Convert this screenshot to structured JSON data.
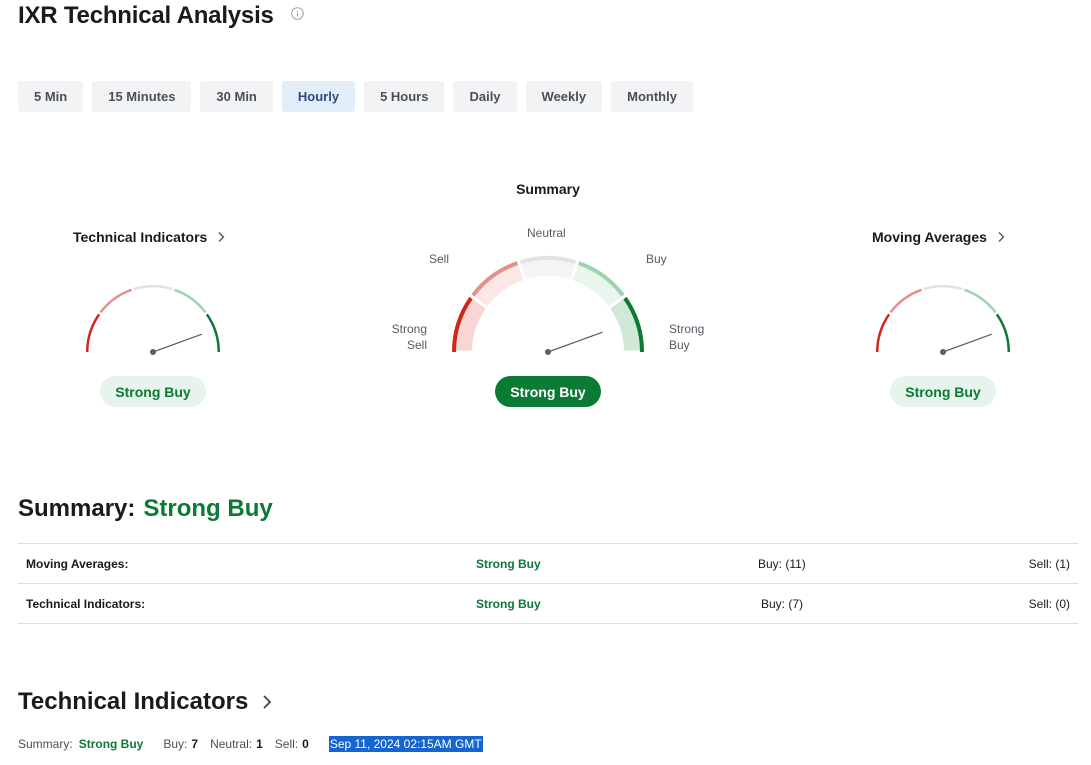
{
  "page": {
    "title": "IXR Technical Analysis",
    "info_icon": "info-icon"
  },
  "timeframes": [
    {
      "label": "5 Min",
      "active": false
    },
    {
      "label": "15 Minutes",
      "active": false
    },
    {
      "label": "30 Min",
      "active": false
    },
    {
      "label": "Hourly",
      "active": true
    },
    {
      "label": "5 Hours",
      "active": false
    },
    {
      "label": "Daily",
      "active": false
    },
    {
      "label": "Weekly",
      "active": false
    },
    {
      "label": "Monthly",
      "active": false
    }
  ],
  "gauges": {
    "technical_indicators": {
      "title": "Technical Indicators",
      "result": "Strong Buy"
    },
    "summary": {
      "title": "Summary",
      "result": "Strong Buy",
      "labels": {
        "strong_sell_line1": "Strong",
        "strong_sell_line2": "Sell",
        "sell": "Sell",
        "neutral": "Neutral",
        "buy": "Buy",
        "strong_buy_line1": "Strong",
        "strong_buy_line2": "Buy"
      }
    },
    "moving_averages": {
      "title": "Moving Averages",
      "result": "Strong Buy"
    }
  },
  "summary_section": {
    "label": "Summary:",
    "value": "Strong Buy",
    "rows": [
      {
        "label": "Moving Averages:",
        "value": "Strong Buy",
        "buy": "Buy: (11)",
        "sell": "Sell: (1)"
      },
      {
        "label": "Technical Indicators:",
        "value": "Strong Buy",
        "buy": "Buy: (7)",
        "sell": "Sell: (0)"
      }
    ]
  },
  "technical_indicators_section": {
    "heading": "Technical Indicators",
    "summary_label": "Summary:",
    "summary_value": "Strong Buy",
    "buy_label": "Buy:",
    "buy_value": "7",
    "neutral_label": "Neutral:",
    "neutral_value": "1",
    "sell_label": "Sell:",
    "sell_value": "0",
    "timestamp": "Sep 11, 2024 02:15AM GMT"
  },
  "colors": {
    "strong_sell": "#d0271d",
    "sell": "#e4918b",
    "neutral": "#e2e2e2",
    "buy": "#9fd3ae",
    "strong_buy": "#0b7a34",
    "active_tab": "#e3edf8",
    "selection": "#1464d2"
  }
}
